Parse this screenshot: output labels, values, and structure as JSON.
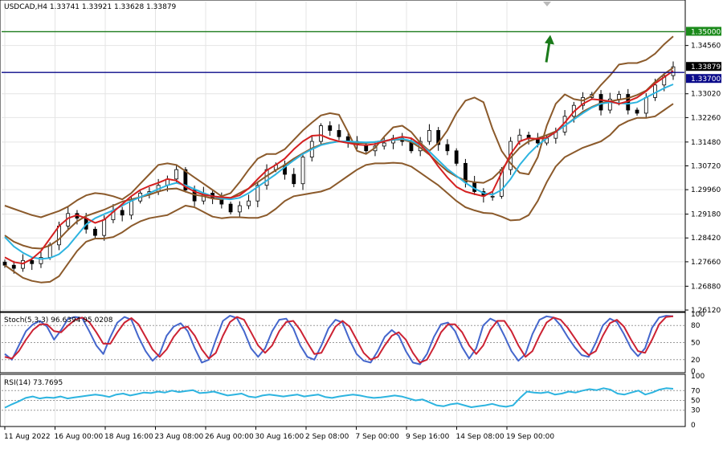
{
  "chart_data": [
    {
      "type": "line",
      "panel": "main",
      "title": "USDCAD,H4  1.33741 1.33921 1.33628 1.33879",
      "ylim": [
        1.2612,
        1.3596
      ],
      "grid": true,
      "y_ticks": [
        "1.35000",
        "1.34560",
        "1.33879",
        "1.33700",
        "1.33020",
        "1.32260",
        "1.31480",
        "1.30720",
        "1.29960",
        "1.29180",
        "1.28420",
        "1.27660",
        "1.26880",
        "1.26120"
      ],
      "levels": [
        {
          "label": "1.35000",
          "value": 1.35,
          "color": "#1a7a1a",
          "badge_color": "#1a8a1a"
        },
        {
          "label": "1.33700",
          "value": 1.337,
          "color": "#0a0a8a",
          "badge_color": "#0a0a8a"
        },
        {
          "label": "1.33879",
          "value": 1.33879,
          "color": "#000000",
          "badge_color": "#000000"
        }
      ],
      "arrow": {
        "direction": "up",
        "color": "#1a7a1a"
      },
      "series": [
        {
          "color": "#8b5a2b",
          "values": [
            1.2945,
            1.2935,
            1.2925,
            1.2915,
            1.2908,
            1.2918,
            1.2928,
            1.2942,
            1.2962,
            1.2978,
            1.2985,
            1.2982,
            1.2975,
            1.2965,
            1.2985,
            1.3015,
            1.3045,
            1.3075,
            1.308,
            1.3075,
            1.3055,
            1.3035,
            1.3015,
            1.2995,
            1.2975,
            1.2985,
            1.302,
            1.306,
            1.3095,
            1.311,
            1.311,
            1.3125,
            1.3155,
            1.3185,
            1.321,
            1.3233,
            1.324,
            1.3235,
            1.318,
            1.312,
            1.311,
            1.313,
            1.3165,
            1.3195,
            1.32,
            1.318,
            1.3145,
            1.312,
            1.3145,
            1.3185,
            1.324,
            1.328,
            1.329,
            1.3275,
            1.319,
            1.312,
            1.308,
            1.305,
            1.3045,
            1.31,
            1.32,
            1.327,
            1.33,
            1.3285,
            1.328,
            1.3295,
            1.333,
            1.336,
            1.3395,
            1.34,
            1.34,
            1.341,
            1.343,
            1.346,
            1.3485
          ]
        },
        {
          "color": "#8b5a2b",
          "values": [
            1.2755,
            1.2735,
            1.2715,
            1.2705,
            1.27,
            1.2702,
            1.272,
            1.276,
            1.28,
            1.283,
            1.284,
            1.284,
            1.2845,
            1.286,
            1.288,
            1.2895,
            1.2905,
            1.291,
            1.2915,
            1.293,
            1.2945,
            1.294,
            1.2925,
            1.291,
            1.2905,
            1.2908,
            1.2908,
            1.2906,
            1.2906,
            1.2915,
            1.2935,
            1.296,
            1.2975,
            1.298,
            1.2985,
            1.299,
            1.3,
            1.302,
            1.304,
            1.306,
            1.3075,
            1.308,
            1.308,
            1.3082,
            1.308,
            1.307,
            1.305,
            1.303,
            1.301,
            1.2985,
            1.296,
            1.294,
            1.293,
            1.2922,
            1.292,
            1.291,
            1.2898,
            1.29,
            1.2915,
            1.296,
            1.302,
            1.307,
            1.31,
            1.3115,
            1.313,
            1.314,
            1.315,
            1.317,
            1.32,
            1.3215,
            1.3225,
            1.3225,
            1.323,
            1.325,
            1.327
          ]
        },
        {
          "color": "#8b5a2b",
          "values": [
            1.285,
            1.283,
            1.2818,
            1.281,
            1.2808,
            1.2818,
            1.2838,
            1.2868,
            1.2895,
            1.2912,
            1.2922,
            1.2932,
            1.2945,
            1.2958,
            1.2965,
            1.2972,
            1.298,
            1.299,
            1.2998,
            1.3,
            1.299,
            1.298,
            1.2975,
            1.2968,
            1.2965,
            1.297,
            1.2985,
            1.3,
            1.302,
            1.304,
            1.3058,
            1.3075,
            1.3095,
            1.3112,
            1.3128,
            1.314,
            1.3146,
            1.315,
            1.3148,
            1.3145,
            1.3145,
            1.3148,
            1.3152,
            1.3155,
            1.3156,
            1.3148,
            1.313,
            1.3108,
            1.308,
            1.3055,
            1.3038,
            1.3025,
            1.302,
            1.3018,
            1.3032,
            1.306,
            1.3098,
            1.313,
            1.315,
            1.316,
            1.317,
            1.3182,
            1.32,
            1.3222,
            1.3245,
            1.326,
            1.3272,
            1.3278,
            1.3283,
            1.3288,
            1.3298,
            1.3312,
            1.334,
            1.3365,
            1.3385
          ]
        },
        {
          "color": "#2db4e0",
          "values": [
            1.2845,
            1.2815,
            1.2795,
            1.278,
            1.2775,
            1.2778,
            1.279,
            1.2815,
            1.285,
            1.2885,
            1.2905,
            1.2918,
            1.293,
            1.2945,
            1.296,
            1.2972,
            1.2985,
            1.2998,
            1.301,
            1.3018,
            1.301,
            1.2998,
            1.2985,
            1.2975,
            1.2968,
            1.2965,
            1.297,
            1.2985,
            1.3005,
            1.3025,
            1.3045,
            1.3068,
            1.309,
            1.311,
            1.3125,
            1.3138,
            1.3145,
            1.315,
            1.315,
            1.3148,
            1.3147,
            1.3148,
            1.3152,
            1.3155,
            1.3158,
            1.3152,
            1.3138,
            1.3118,
            1.309,
            1.3062,
            1.304,
            1.3018,
            1.3,
            1.2985,
            1.298,
            1.2995,
            1.303,
            1.3075,
            1.311,
            1.3138,
            1.316,
            1.318,
            1.32,
            1.322,
            1.324,
            1.3258,
            1.327,
            1.3275,
            1.3272,
            1.327,
            1.3275,
            1.329,
            1.3305,
            1.332,
            1.3332
          ]
        },
        {
          "color": "#d42020",
          "values": [
            1.278,
            1.2765,
            1.276,
            1.2775,
            1.28,
            1.284,
            1.288,
            1.2905,
            1.2915,
            1.2905,
            1.289,
            1.29,
            1.2925,
            1.295,
            1.2975,
            1.2995,
            1.3008,
            1.3018,
            1.303,
            1.3025,
            1.3005,
            1.299,
            1.298,
            1.2975,
            1.2972,
            1.297,
            1.2978,
            1.3,
            1.303,
            1.3058,
            1.3075,
            1.3095,
            1.3125,
            1.315,
            1.3168,
            1.317,
            1.3158,
            1.315,
            1.3145,
            1.314,
            1.3138,
            1.3142,
            1.315,
            1.3158,
            1.3165,
            1.316,
            1.314,
            1.311,
            1.307,
            1.3035,
            1.3005,
            1.299,
            1.2982,
            1.2975,
            1.299,
            1.305,
            1.311,
            1.315,
            1.316,
            1.3158,
            1.3162,
            1.318,
            1.321,
            1.3245,
            1.327,
            1.3285,
            1.3282,
            1.3278,
            1.327,
            1.3278,
            1.329,
            1.331,
            1.3335,
            1.3355,
            1.3375
          ]
        }
      ]
    },
    {
      "type": "line",
      "panel": "stochastic",
      "title": "Stoch(5,3,3) 96.6394 95.0208",
      "ylim": [
        0,
        100
      ],
      "levels": [
        {
          "label": "80",
          "value": 80
        },
        {
          "label": "50",
          "value": 50
        },
        {
          "label": "20",
          "value": 20
        }
      ],
      "y_ticks": [
        "100",
        "80",
        "50",
        "20",
        "0"
      ],
      "series": [
        {
          "color": "#4466cc",
          "values": [
            30,
            20,
            45,
            70,
            82,
            88,
            78,
            55,
            72,
            92,
            95,
            93,
            70,
            45,
            30,
            60,
            85,
            95,
            90,
            60,
            35,
            18,
            30,
            62,
            78,
            84,
            70,
            40,
            15,
            20,
            55,
            88,
            97,
            93,
            70,
            40,
            25,
            40,
            70,
            90,
            92,
            75,
            45,
            25,
            20,
            45,
            75,
            90,
            85,
            55,
            30,
            18,
            15,
            35,
            60,
            72,
            62,
            35,
            15,
            12,
            30,
            60,
            82,
            85,
            70,
            42,
            22,
            40,
            80,
            92,
            86,
            62,
            35,
            18,
            30,
            65,
            90,
            96,
            94,
            80,
            60,
            42,
            28,
            25,
            50,
            80,
            92,
            86,
            65,
            40,
            26,
            40,
            76,
            94,
            97,
            96
          ]
        },
        {
          "color": "#cc2233",
          "values": [
            25,
            22,
            35,
            55,
            72,
            82,
            82,
            70,
            68,
            80,
            90,
            94,
            86,
            68,
            48,
            48,
            68,
            85,
            93,
            82,
            60,
            38,
            25,
            38,
            60,
            75,
            78,
            62,
            38,
            22,
            32,
            62,
            86,
            95,
            90,
            68,
            45,
            32,
            45,
            70,
            86,
            88,
            72,
            50,
            30,
            32,
            55,
            78,
            88,
            78,
            55,
            32,
            20,
            25,
            45,
            62,
            68,
            55,
            32,
            15,
            20,
            42,
            68,
            82,
            82,
            68,
            45,
            30,
            45,
            72,
            88,
            88,
            70,
            45,
            25,
            35,
            62,
            85,
            94,
            90,
            76,
            58,
            40,
            28,
            35,
            62,
            84,
            90,
            78,
            55,
            35,
            32,
            55,
            82,
            95,
            96
          ]
        }
      ]
    },
    {
      "type": "line",
      "panel": "rsi",
      "title": "RSI(14) 73.7695",
      "ylim": [
        0,
        100
      ],
      "levels": [
        {
          "label": "70",
          "value": 70
        },
        {
          "label": "50",
          "value": 50
        },
        {
          "label": "30",
          "value": 30
        }
      ],
      "y_ticks": [
        "100",
        "70",
        "50",
        "30",
        "0"
      ],
      "series": [
        {
          "color": "#2db4e0",
          "values": [
            35,
            42,
            48,
            55,
            58,
            54,
            56,
            55,
            58,
            54,
            56,
            58,
            60,
            62,
            60,
            57,
            62,
            64,
            60,
            63,
            66,
            65,
            68,
            66,
            70,
            67,
            69,
            71,
            65,
            66,
            68,
            64,
            60,
            62,
            64,
            58,
            56,
            60,
            62,
            60,
            58,
            60,
            62,
            58,
            60,
            62,
            57,
            55,
            58,
            60,
            62,
            60,
            57,
            55,
            56,
            58,
            60,
            58,
            54,
            50,
            52,
            46,
            40,
            38,
            42,
            44,
            40,
            36,
            38,
            40,
            43,
            39,
            37,
            40,
            55,
            68,
            66,
            65,
            67,
            62,
            64,
            68,
            66,
            70,
            73,
            71,
            75,
            72,
            64,
            62,
            66,
            70,
            62,
            66,
            72,
            75,
            73.77
          ]
        }
      ]
    }
  ],
  "x_ticks": [
    "11 Aug 2022",
    "16 Aug 00:00",
    "18 Aug 16:00",
    "23 Aug 08:00",
    "26 Aug 00:00",
    "30 Aug 16:00",
    "2 Sep 08:00",
    "7 Sep 00:00",
    "9 Sep 16:00",
    "14 Sep 08:00",
    "19 Sep 00:00"
  ],
  "candles": {
    "up_color": "#000000",
    "down_color": "#000000",
    "close": [
      1.2755,
      1.2745,
      1.277,
      1.276,
      1.278,
      1.282,
      1.288,
      1.292,
      1.2905,
      1.287,
      1.285,
      1.29,
      1.293,
      1.2915,
      1.296,
      1.2985,
      1.299,
      1.301,
      1.303,
      1.306,
      1.2995,
      1.296,
      1.2985,
      1.297,
      1.295,
      1.2925,
      1.2945,
      1.296,
      1.301,
      1.306,
      1.3075,
      1.3045,
      1.3015,
      1.31,
      1.315,
      1.32,
      1.3185,
      1.3165,
      1.315,
      1.314,
      1.312,
      1.3135,
      1.3145,
      1.316,
      1.315,
      1.312,
      1.315,
      1.3185,
      1.314,
      1.312,
      1.308,
      1.302,
      1.299,
      1.2975,
      1.2975,
      1.306,
      1.315,
      1.317,
      1.316,
      1.3145,
      1.316,
      1.318,
      1.323,
      1.3265,
      1.329,
      1.33,
      1.325,
      1.3285,
      1.33,
      1.325,
      1.324,
      1.329,
      1.333,
      1.336,
      1.3388
    ]
  }
}
